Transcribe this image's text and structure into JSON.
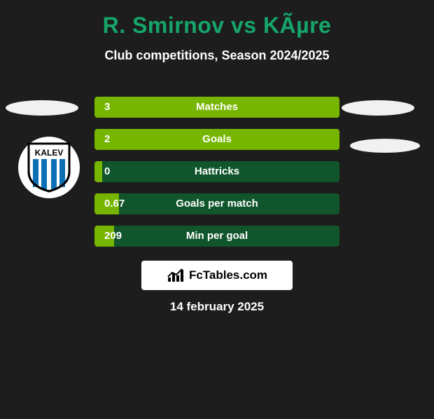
{
  "colors": {
    "page_bg": "#1d1d1d",
    "title_color": "#16a56a",
    "bar_bg": "#10552b",
    "bar_fg": "#76b500",
    "text": "#ffffff",
    "badge_bg": "#ffffff",
    "ellipse_bg": "#f1f1f1"
  },
  "header": {
    "player1": "R. Smirnov",
    "vs": "vs",
    "player2": "KÃµre"
  },
  "subtitle": "Club competitions, Season 2024/2025",
  "stats": [
    {
      "label": "Matches",
      "value_left": "3",
      "fill_percent": 100
    },
    {
      "label": "Goals",
      "value_left": "2",
      "fill_percent": 100
    },
    {
      "label": "Hattricks",
      "value_left": "0",
      "fill_percent": 3
    },
    {
      "label": "Goals per match",
      "value_left": "0.67",
      "fill_percent": 10
    },
    {
      "label": "Min per goal",
      "value_left": "209",
      "fill_percent": 8
    }
  ],
  "logo_text": "FcTables.com",
  "date": "14 february 2025",
  "club_badge": {
    "name_text": "KALEV",
    "stripe_color": "#0b6fb5",
    "text_color": "#000000",
    "bg": "#ffffff"
  },
  "bar_chart_icon": {
    "bar_color": "#000000"
  }
}
